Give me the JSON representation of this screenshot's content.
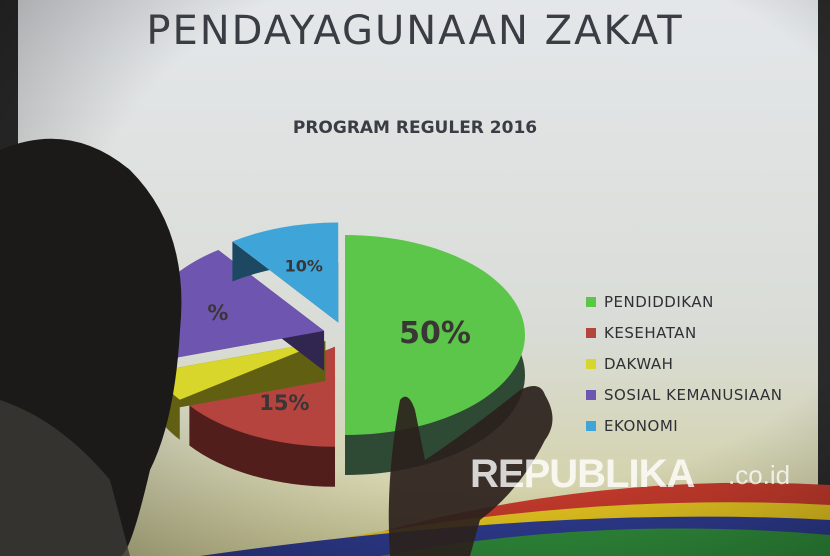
{
  "slide": {
    "title": "PENDAYAGUNAAN ZAKAT",
    "subtitle": "PROGRAM REGULER 2016"
  },
  "watermark": {
    "brand": "REPUBLIKA",
    "suffix": ".co.id"
  },
  "chart_data": {
    "type": "pie",
    "title": "PROGRAM REGULER 2016",
    "style": "3d-exploded",
    "legend_placement": "right",
    "categories": [
      "PENDIDDIKAN",
      "KESEHATAN",
      "DAKWAH",
      "SOSIAL KEMANUSIAAN",
      "EKONOMI"
    ],
    "values": [
      50,
      15,
      5,
      20,
      10
    ],
    "data_labels": [
      "50%",
      "15%",
      "",
      "%",
      "10%"
    ],
    "colors": [
      "#5cc64a",
      "#b5433e",
      "#d8d62a",
      "#6d55b0",
      "#3fa4d8"
    ]
  }
}
